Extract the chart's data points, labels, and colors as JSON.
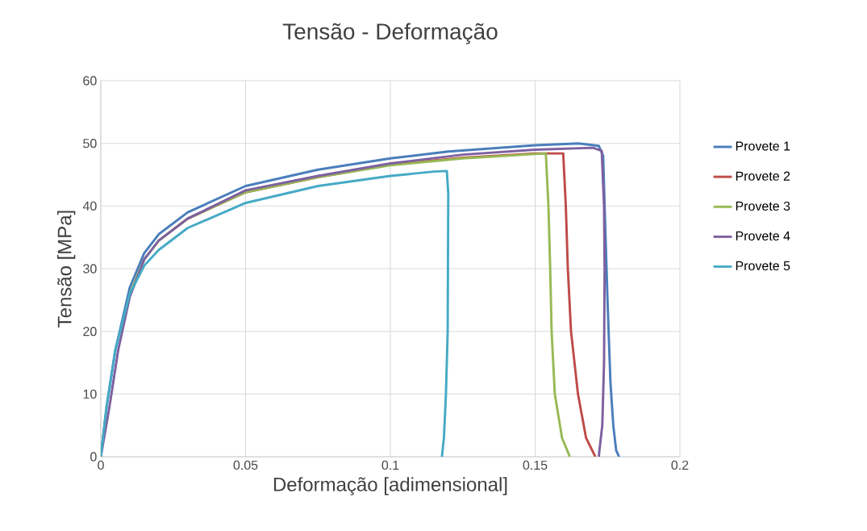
{
  "chart_data": {
    "type": "line",
    "title": "Tensão - Deformação",
    "xlabel": "Deformação [adimensional]",
    "ylabel": "Tensão [MPa]",
    "xlim": [
      0,
      0.2
    ],
    "ylim": [
      0,
      60
    ],
    "xticks": [
      0,
      0.05,
      0.1,
      0.15,
      0.2
    ],
    "yticks": [
      0,
      10,
      20,
      30,
      40,
      50,
      60
    ],
    "grid": true,
    "legend": "right",
    "marker": "none",
    "line_style": "solid",
    "series": [
      {
        "name": "Provete 1",
        "color": "#4a7ebb",
        "x": [
          0,
          0.002,
          0.005,
          0.01,
          0.015,
          0.02,
          0.03,
          0.05,
          0.075,
          0.1,
          0.12,
          0.15,
          0.165,
          0.172,
          0.1735,
          0.174,
          0.175,
          0.176,
          0.177,
          0.178,
          0.179
        ],
        "values": [
          0,
          8,
          17,
          27,
          32.5,
          35.5,
          39,
          43.2,
          45.8,
          47.6,
          48.7,
          49.7,
          50,
          49.6,
          48,
          40,
          25,
          12,
          5,
          1,
          0
        ]
      },
      {
        "name": "Provete 2",
        "color": "#be4b48",
        "x": [
          0.02,
          0.03,
          0.05,
          0.075,
          0.1,
          0.125,
          0.15,
          0.1597,
          0.1606,
          0.1613,
          0.1624,
          0.1648,
          0.1676,
          0.1708
        ],
        "values": [
          34.5,
          38,
          42.2,
          44.6,
          46.6,
          47.7,
          48.4,
          48.4,
          40,
          30,
          20,
          10,
          3,
          0
        ]
      },
      {
        "name": "Provete 3",
        "color": "#98b954",
        "x": [
          0.01,
          0.015,
          0.02,
          0.03,
          0.05,
          0.075,
          0.1,
          0.125,
          0.15,
          0.1537,
          0.1546,
          0.1552,
          0.1557,
          0.1568,
          0.1593,
          0.162
        ],
        "values": [
          26,
          31.5,
          34.5,
          38,
          42.2,
          44.6,
          46.5,
          47.6,
          48.3,
          48.4,
          40,
          30,
          20,
          10,
          3,
          0
        ]
      },
      {
        "name": "Provete 4",
        "color": "#7d60a0",
        "x": [
          0,
          0.003,
          0.006,
          0.01,
          0.015,
          0.02,
          0.03,
          0.05,
          0.075,
          0.1,
          0.125,
          0.15,
          0.17,
          0.173,
          0.1738,
          0.174,
          0.1738,
          0.1732,
          0.1722,
          0.172
        ],
        "values": [
          0,
          8,
          17,
          25.5,
          31.5,
          34.5,
          38,
          42.5,
          44.8,
          46.8,
          48.2,
          49,
          49.3,
          48.8,
          40,
          30,
          15,
          5,
          1,
          0
        ]
      },
      {
        "name": "Provete 5",
        "color": "#46aac5",
        "x": [
          0,
          0.002,
          0.005,
          0.01,
          0.015,
          0.02,
          0.03,
          0.05,
          0.075,
          0.1,
          0.115,
          0.1195,
          0.12,
          0.1198,
          0.1192,
          0.1185,
          0.1178
        ],
        "values": [
          0,
          8,
          17,
          26,
          30.5,
          33,
          36.5,
          40.5,
          43.2,
          44.8,
          45.5,
          45.6,
          42,
          20,
          10,
          3,
          0
        ]
      }
    ]
  }
}
